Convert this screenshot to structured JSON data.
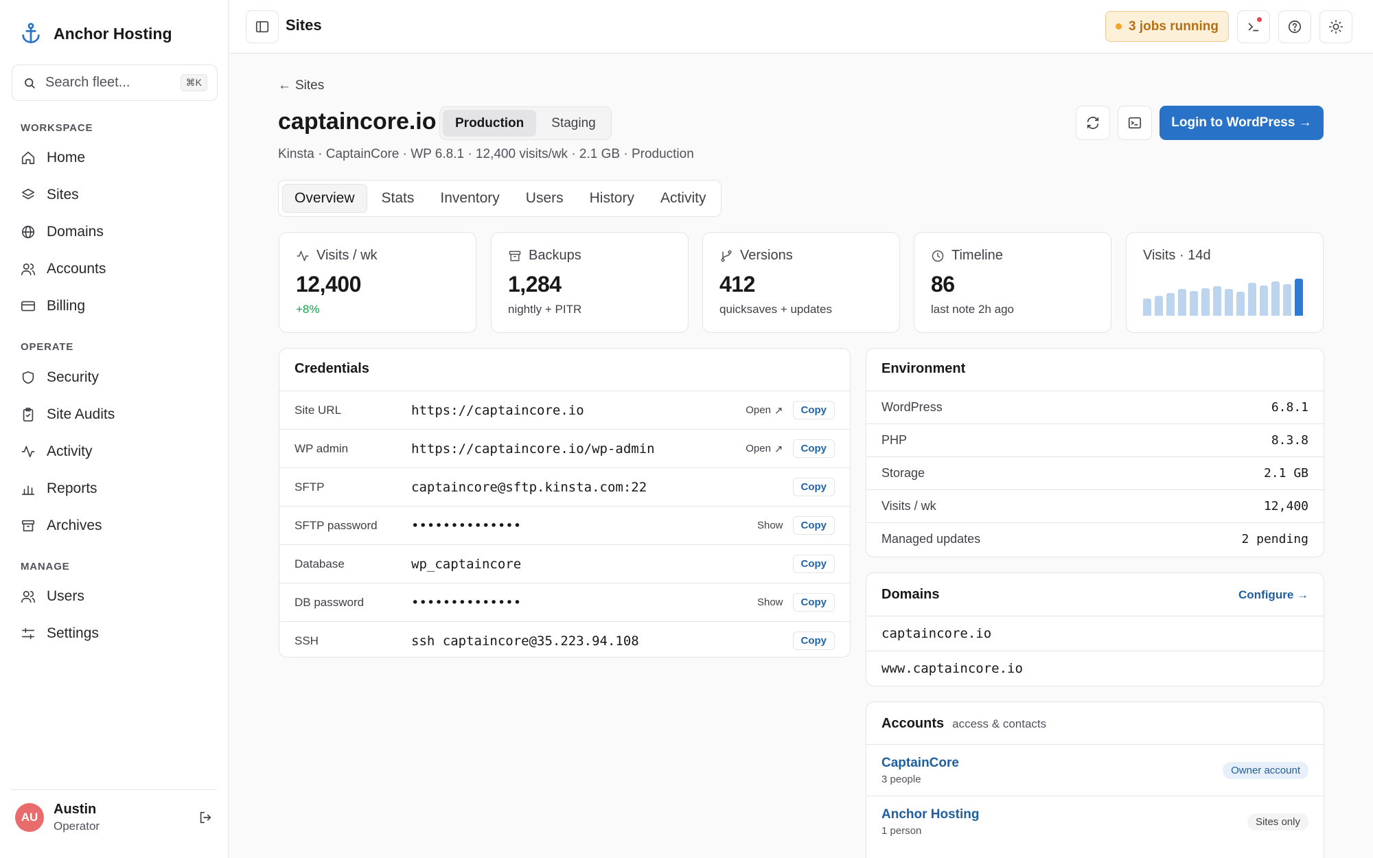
{
  "app": {
    "name": "Anchor Hosting"
  },
  "search": {
    "placeholder": "Search fleet...",
    "shortcut": "⌘K"
  },
  "sidebar": {
    "sections": [
      {
        "label": "WORKSPACE",
        "items": [
          {
            "label": "Home",
            "icon": "home-icon"
          },
          {
            "label": "Sites",
            "icon": "layers-icon"
          },
          {
            "label": "Domains",
            "icon": "globe-icon"
          },
          {
            "label": "Accounts",
            "icon": "users-icon"
          },
          {
            "label": "Billing",
            "icon": "credit-card-icon"
          }
        ]
      },
      {
        "label": "OPERATE",
        "items": [
          {
            "label": "Security",
            "icon": "shield-icon"
          },
          {
            "label": "Site Audits",
            "icon": "clipboard-icon"
          },
          {
            "label": "Activity",
            "icon": "activity-icon"
          },
          {
            "label": "Reports",
            "icon": "bar-chart-icon"
          },
          {
            "label": "Archives",
            "icon": "archive-icon"
          }
        ]
      },
      {
        "label": "MANAGE",
        "items": [
          {
            "label": "Users",
            "icon": "users-icon"
          },
          {
            "label": "Settings",
            "icon": "sliders-icon"
          }
        ]
      }
    ]
  },
  "user": {
    "initials": "AU",
    "name": "Austin",
    "role": "Operator"
  },
  "topbar": {
    "title": "Sites",
    "jobs": "3 jobs running"
  },
  "site": {
    "back_label": "Sites",
    "title": "captaincore.io",
    "env_options": [
      "Production",
      "Staging"
    ],
    "env_selected": "Production",
    "subtitle": "Kinsta · CaptainCore · WP 6.8.1 · 12,400 visits/wk · 2.1 GB · Production",
    "login_button": "Login to WordPress →"
  },
  "tabs": [
    {
      "label": "Overview",
      "active": true
    },
    {
      "label": "Stats"
    },
    {
      "label": "Inventory"
    },
    {
      "label": "Users"
    },
    {
      "label": "History"
    },
    {
      "label": "Activity"
    }
  ],
  "stats": [
    {
      "label": "Visits / wk",
      "value": "12,400",
      "sub": "+8%",
      "icon": "pulse-icon"
    },
    {
      "label": "Backups",
      "value": "1,284",
      "sub": "nightly + PITR",
      "icon": "archive-icon"
    },
    {
      "label": "Versions",
      "value": "412",
      "sub": "quicksaves + updates",
      "icon": "git-branch-icon"
    },
    {
      "label": "Timeline",
      "value": "86",
      "sub": "last note 2h ago",
      "icon": "clock-icon"
    }
  ],
  "sparkline": {
    "label": "Visits · 14d",
    "values": [
      20,
      23,
      26,
      31,
      29,
      32,
      34,
      31,
      28,
      38,
      35,
      40,
      37,
      43
    ],
    "color": "#2f7bd3"
  },
  "credentials": {
    "title": "Credentials",
    "rows": [
      {
        "label": "Site URL",
        "value": "https://captaincore.io",
        "action": "Open",
        "copy": "Copy"
      },
      {
        "label": "WP admin",
        "value": "https://captaincore.io/wp-admin",
        "action": "Open",
        "copy": "Copy"
      },
      {
        "label": "SFTP",
        "value": "captaincore@sftp.kinsta.com:22",
        "action": "",
        "copy": "Copy"
      },
      {
        "label": "SFTP password",
        "value": "••••••••••••••",
        "action": "Show",
        "copy": "Copy"
      },
      {
        "label": "Database",
        "value": "wp_captaincore",
        "action": "",
        "copy": "Copy"
      },
      {
        "label": "DB password",
        "value": "••••••••••••••",
        "action": "Show",
        "copy": "Copy"
      },
      {
        "label": "SSH",
        "value": "ssh captaincore@35.223.94.108",
        "action": "",
        "copy": "Copy"
      }
    ]
  },
  "environment": {
    "title": "Environment",
    "rows": [
      {
        "label": "WordPress",
        "value": "6.8.1"
      },
      {
        "label": "PHP",
        "value": "8.3.8"
      },
      {
        "label": "Storage",
        "value": "2.1 GB"
      },
      {
        "label": "Visits / wk",
        "value": "12,400"
      },
      {
        "label": "Managed updates",
        "value": "2 pending"
      }
    ]
  },
  "domains": {
    "title": "Domains",
    "configure": "Configure →",
    "items": [
      "captaincore.io",
      "www.captaincore.io"
    ]
  },
  "accounts": {
    "title": "Accounts",
    "subtitle": "access & contacts",
    "items": [
      {
        "name": "CaptainCore",
        "count": "3 people",
        "badge": "Owner account"
      },
      {
        "name": "Anchor Hosting",
        "count": "1 person",
        "badge": "Sites only"
      }
    ]
  },
  "colors": {
    "accent": "#2872c8",
    "jobs_bg": "#fdf0d8",
    "jobs_text": "#b86e12",
    "positive": "#16a34a"
  }
}
